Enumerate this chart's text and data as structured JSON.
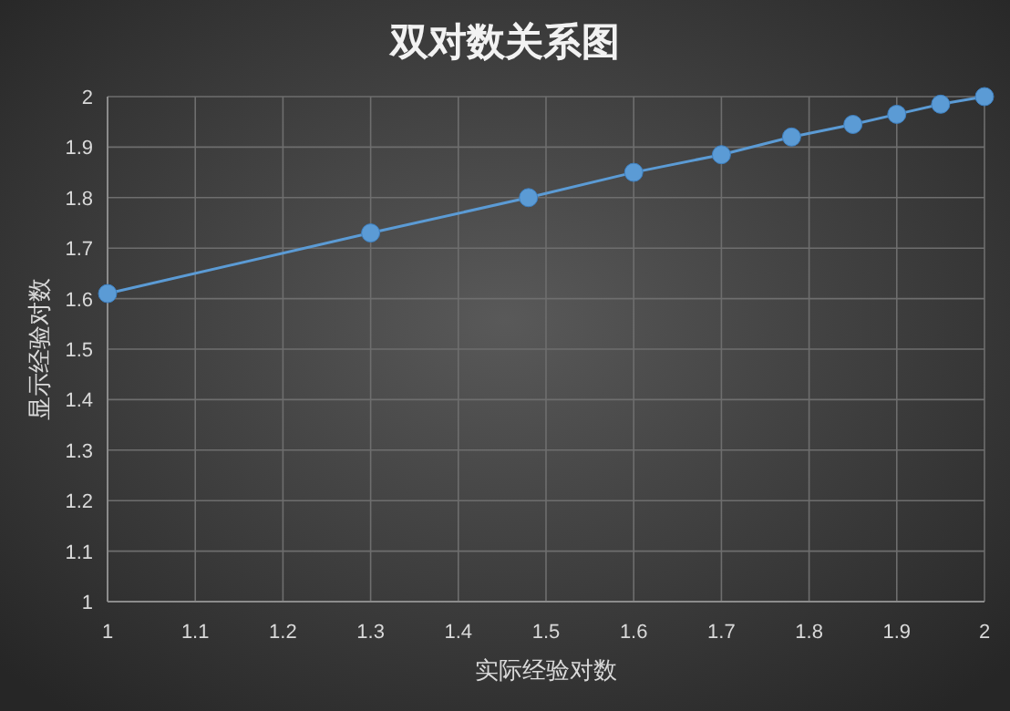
{
  "chart_data": {
    "type": "line",
    "title": "双对数关系图",
    "xlabel": "实际经验对数",
    "ylabel": "显示经验对数",
    "x": [
      1,
      1.3,
      1.48,
      1.6,
      1.7,
      1.78,
      1.85,
      1.9,
      1.95,
      2
    ],
    "series": [
      {
        "color": "#5b9bd5",
        "values": [
          1.61,
          1.73,
          1.8,
          1.85,
          1.885,
          1.92,
          1.945,
          1.965,
          1.985,
          2
        ]
      }
    ],
    "xlim": [
      1,
      2
    ],
    "xticks": [
      1,
      1.1,
      1.2,
      1.3,
      1.4,
      1.5,
      1.6,
      1.7,
      1.8,
      1.9,
      2
    ],
    "ylim": [
      1,
      2
    ],
    "yticks": [
      1,
      1.1,
      1.2,
      1.3,
      1.4,
      1.5,
      1.6,
      1.7,
      1.8,
      1.9,
      2
    ],
    "grid": true,
    "marker": "circle",
    "line_style": "solid"
  }
}
